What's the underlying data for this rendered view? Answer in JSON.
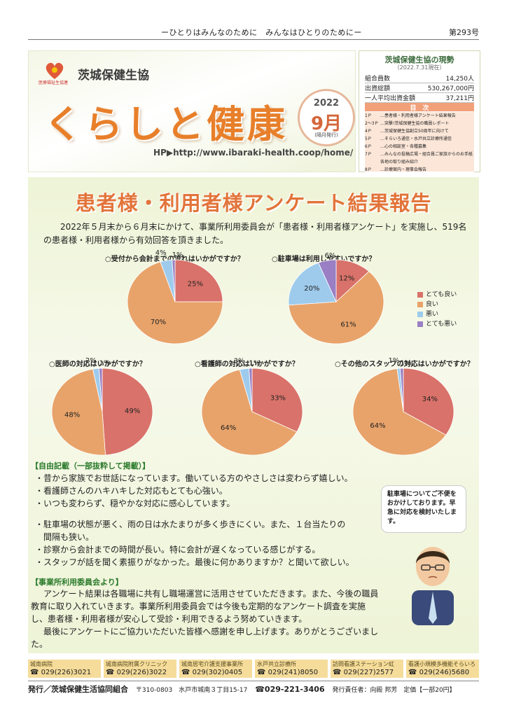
{
  "header": {
    "slogan": "ーひとりはみんなのために　みんなはひとりのためにー",
    "issue": "第293号"
  },
  "masthead": {
    "org_name": "茨城保健生協",
    "logo_sub": "医療福祉生協連",
    "title": "くらしと健康",
    "year": "2022",
    "month": "9月",
    "frequency": "(隔月発行)",
    "hp": "HP▶http://www.ibaraki-health.coop/home/"
  },
  "status": {
    "title": "茨城保健生協の現勢",
    "date": "（2022.7.31現在）",
    "rows": [
      {
        "label": "組合員数",
        "value": "14,250人"
      },
      {
        "label": "出資総額",
        "value": "530,267,000円"
      },
      {
        "label": "一人平均出資金額",
        "value": "37,211円"
      }
    ],
    "toc_title": "目　次",
    "toc": [
      {
        "page": "1Ｐ",
        "text": "…患者様・利用者様アンケート結果報告"
      },
      {
        "page": "2～3Ｐ",
        "text": "…突撃!茨城保健生協の職員レポート"
      },
      {
        "page": "4Ｐ",
        "text": "…茨城保健生協創立50周年に向けて"
      },
      {
        "page": "5Ｐ",
        "text": "…そらいろ通信・水戸共立診療所通信"
      },
      {
        "page": "6Ｐ",
        "text": "…心の相談室・各種募集"
      },
      {
        "page": "7Ｐ",
        "text": "…みんなの投稿広場・組合員ご家族からのお手紙"
      },
      {
        "page": "",
        "text": "各地の取り組み紹介"
      },
      {
        "page": "8Ｐ",
        "text": "…診療案内・理事会報告"
      }
    ]
  },
  "survey": {
    "heading": "患者様・利用者様アンケート結果報告",
    "intro": "2022年５月末から６月末にかけて、事業所利用委員会が「患者様・利用者様アンケート」を実施し、519名の患者様・利用者様から有効回答を頂きました。"
  },
  "chart_data": [
    {
      "type": "pie",
      "title": "○受付から会計までの流れはいかがですか？",
      "categories": [
        "とても良い",
        "良い",
        "悪い",
        "とても悪い"
      ],
      "values": [
        25,
        70,
        4,
        1
      ],
      "labels": [
        "25%",
        "70%",
        "4%",
        "1%"
      ]
    },
    {
      "type": "pie",
      "title": "○駐車場は利用しやすいですか？",
      "categories": [
        "とても良い",
        "良い",
        "悪い",
        "とても悪い"
      ],
      "values": [
        12,
        61,
        20,
        6
      ],
      "labels": [
        "12%",
        "61%",
        "20%",
        "6%"
      ]
    },
    {
      "type": "pie",
      "title": "○医師の対応はいかがですか？",
      "categories": [
        "とても良い",
        "良い",
        "悪い",
        "とても悪い"
      ],
      "values": [
        49,
        48,
        2,
        1
      ],
      "labels": [
        "49%",
        "48%",
        "2%",
        "1%"
      ]
    },
    {
      "type": "pie",
      "title": "○看護師の対応はいかがですか？",
      "categories": [
        "とても良い",
        "良い",
        "悪い",
        "とても悪い"
      ],
      "values": [
        33,
        64,
        3,
        1
      ],
      "labels": [
        "33%",
        "64%",
        "3%",
        "1%"
      ]
    },
    {
      "type": "pie",
      "title": "○その他のスタッフの対応はいかがですか？",
      "categories": [
        "とても良い",
        "良い",
        "悪い",
        "とても悪い"
      ],
      "values": [
        34,
        64,
        1,
        1
      ],
      "labels": [
        "34%",
        "64%",
        "1%",
        "1%"
      ]
    }
  ],
  "legend": [
    {
      "label": "とても良い",
      "color": "#d9726a"
    },
    {
      "label": "良い",
      "color": "#e8a36a"
    },
    {
      "label": "悪い",
      "color": "#9ecbec"
    },
    {
      "label": "とても悪い",
      "color": "#9a7fc4"
    }
  ],
  "free": {
    "heading": "【自由記載（一部抜粋して掲載）】",
    "lines": [
      "・昔から家族でお世話になっています。働いている方のやさしさは変わらず嬉しい。",
      "・看護師さんのハキハキした対応もとても心強い。",
      "・いつも変わらず、穏やかな対応に感心しています。",
      "・駐車場の状態が悪く、雨の日は水たまりが多く歩きにくい。また、１台当たりの",
      "　間隔も狭い。",
      "・診察から会計までの時間が長い。特に会計が遅くなっている感じがする。",
      "・スタッフが話を聞く素振りがなかった。最後に何かありますか？と聞いて欲しい。"
    ]
  },
  "bubble": "駐車場についてご不便をおかけしております。早急に対応を検討いたします。",
  "committee": {
    "heading": "【事業所利用委員会より】",
    "p1": "アンケート結果は各職場に共有し職場運営に活用させていただきます。また、今後の職員教育に取り入れていきます。事業所利用委員会では今後も定期的なアンケート調査を実施し、患者様・利用者様が安心して受診・利用できるよう努めていきます。",
    "p2": "最後にアンケートにご協力いただいた皆様へ感謝を申し上げます。ありがとうございました。"
  },
  "footer": {
    "offices": [
      {
        "name": "城南病院",
        "phone": "☎ 029(226)3021"
      },
      {
        "name": "城南病院附属クリニック",
        "phone": "☎ 029(226)3022"
      },
      {
        "name": "城南居宅介護支援事業所",
        "phone": "☎ 029(302)0405"
      },
      {
        "name": "水戸共立診療所",
        "phone": "☎ 029(241)8050"
      },
      {
        "name": "訪問看護ステーション虹",
        "phone": "☎ 029(227)2577"
      },
      {
        "name": "看護小規模多機能そらいろ",
        "phone": "☎ 029(246)5680"
      }
    ],
    "publisher": "発行／茨城保健生活協同組合",
    "address": "〒310-0803　水戸市城南３丁目15-17",
    "tel": "☎029-221-3406",
    "editor": "発行責任者：向殿 邦芳",
    "price": "定価【一部20円】"
  }
}
